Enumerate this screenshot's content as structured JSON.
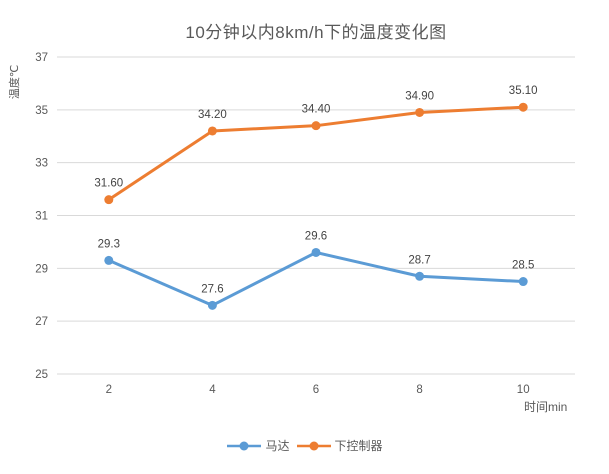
{
  "chart_data": {
    "type": "line",
    "title": "10分钟以内8km/h下的温度变化图",
    "xlabel": "时间min",
    "ylabel": "温度℃",
    "x": [
      2,
      4,
      6,
      8,
      10
    ],
    "ylim": [
      25,
      37
    ],
    "yticks": [
      25,
      27,
      29,
      31,
      33,
      35,
      37
    ],
    "grid": true,
    "legend_position": "bottom",
    "series": [
      {
        "name": "马达",
        "color": "#5B9BD5",
        "values": [
          29.3,
          27.6,
          29.6,
          28.7,
          28.5
        ],
        "labels": [
          "29.3",
          "27.6",
          "29.6",
          "28.7",
          "28.5"
        ]
      },
      {
        "name": "下控制器",
        "color": "#ED7D31",
        "values": [
          31.6,
          34.2,
          34.4,
          34.9,
          35.1
        ],
        "labels": [
          "31.60",
          "34.20",
          "34.40",
          "34.90",
          "35.10"
        ]
      }
    ]
  },
  "colors": {
    "grid": "#D9D9D9",
    "tick_text": "#595959",
    "label_text": "#444444",
    "background": "#FFFFFF"
  }
}
